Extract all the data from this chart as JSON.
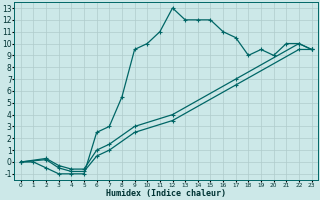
{
  "title": "",
  "xlabel": "Humidex (Indice chaleur)",
  "xlim": [
    -0.5,
    23.5
  ],
  "ylim": [
    -1.5,
    13.5
  ],
  "xticks": [
    0,
    1,
    2,
    3,
    4,
    5,
    6,
    7,
    8,
    9,
    10,
    11,
    12,
    13,
    14,
    15,
    16,
    17,
    18,
    19,
    20,
    21,
    22,
    23
  ],
  "yticks": [
    -1,
    0,
    1,
    2,
    3,
    4,
    5,
    6,
    7,
    8,
    9,
    10,
    11,
    12,
    13
  ],
  "bg_color": "#cce8e8",
  "grid_color": "#b0cccc",
  "line_color": "#006666",
  "line1_x": [
    0,
    1,
    2,
    3,
    4,
    5,
    6,
    7,
    8,
    9,
    10,
    11,
    12,
    13,
    14,
    15,
    16,
    17,
    18,
    19,
    20,
    21,
    22,
    23
  ],
  "line1_y": [
    0,
    0,
    -0.5,
    -1,
    -1,
    -1,
    2.5,
    3.0,
    5.5,
    9.5,
    10,
    11,
    13,
    12,
    12,
    12,
    11,
    10.5,
    9,
    9.5,
    9,
    10,
    10,
    9.5
  ],
  "line2_x": [
    0,
    2,
    3,
    4,
    5,
    6,
    7,
    9,
    12,
    17,
    22,
    23
  ],
  "line2_y": [
    0,
    0.2,
    -0.5,
    -0.8,
    -0.8,
    0.5,
    1.0,
    2.5,
    3.5,
    6.5,
    9.5,
    9.5
  ],
  "line3_x": [
    0,
    2,
    3,
    4,
    5,
    6,
    7,
    9,
    12,
    17,
    22,
    23
  ],
  "line3_y": [
    0,
    0.3,
    -0.3,
    -0.6,
    -0.6,
    1.0,
    1.5,
    3.0,
    4.0,
    7.0,
    10.0,
    9.5
  ],
  "marker": "+",
  "markersize": 3,
  "linewidth": 0.9
}
